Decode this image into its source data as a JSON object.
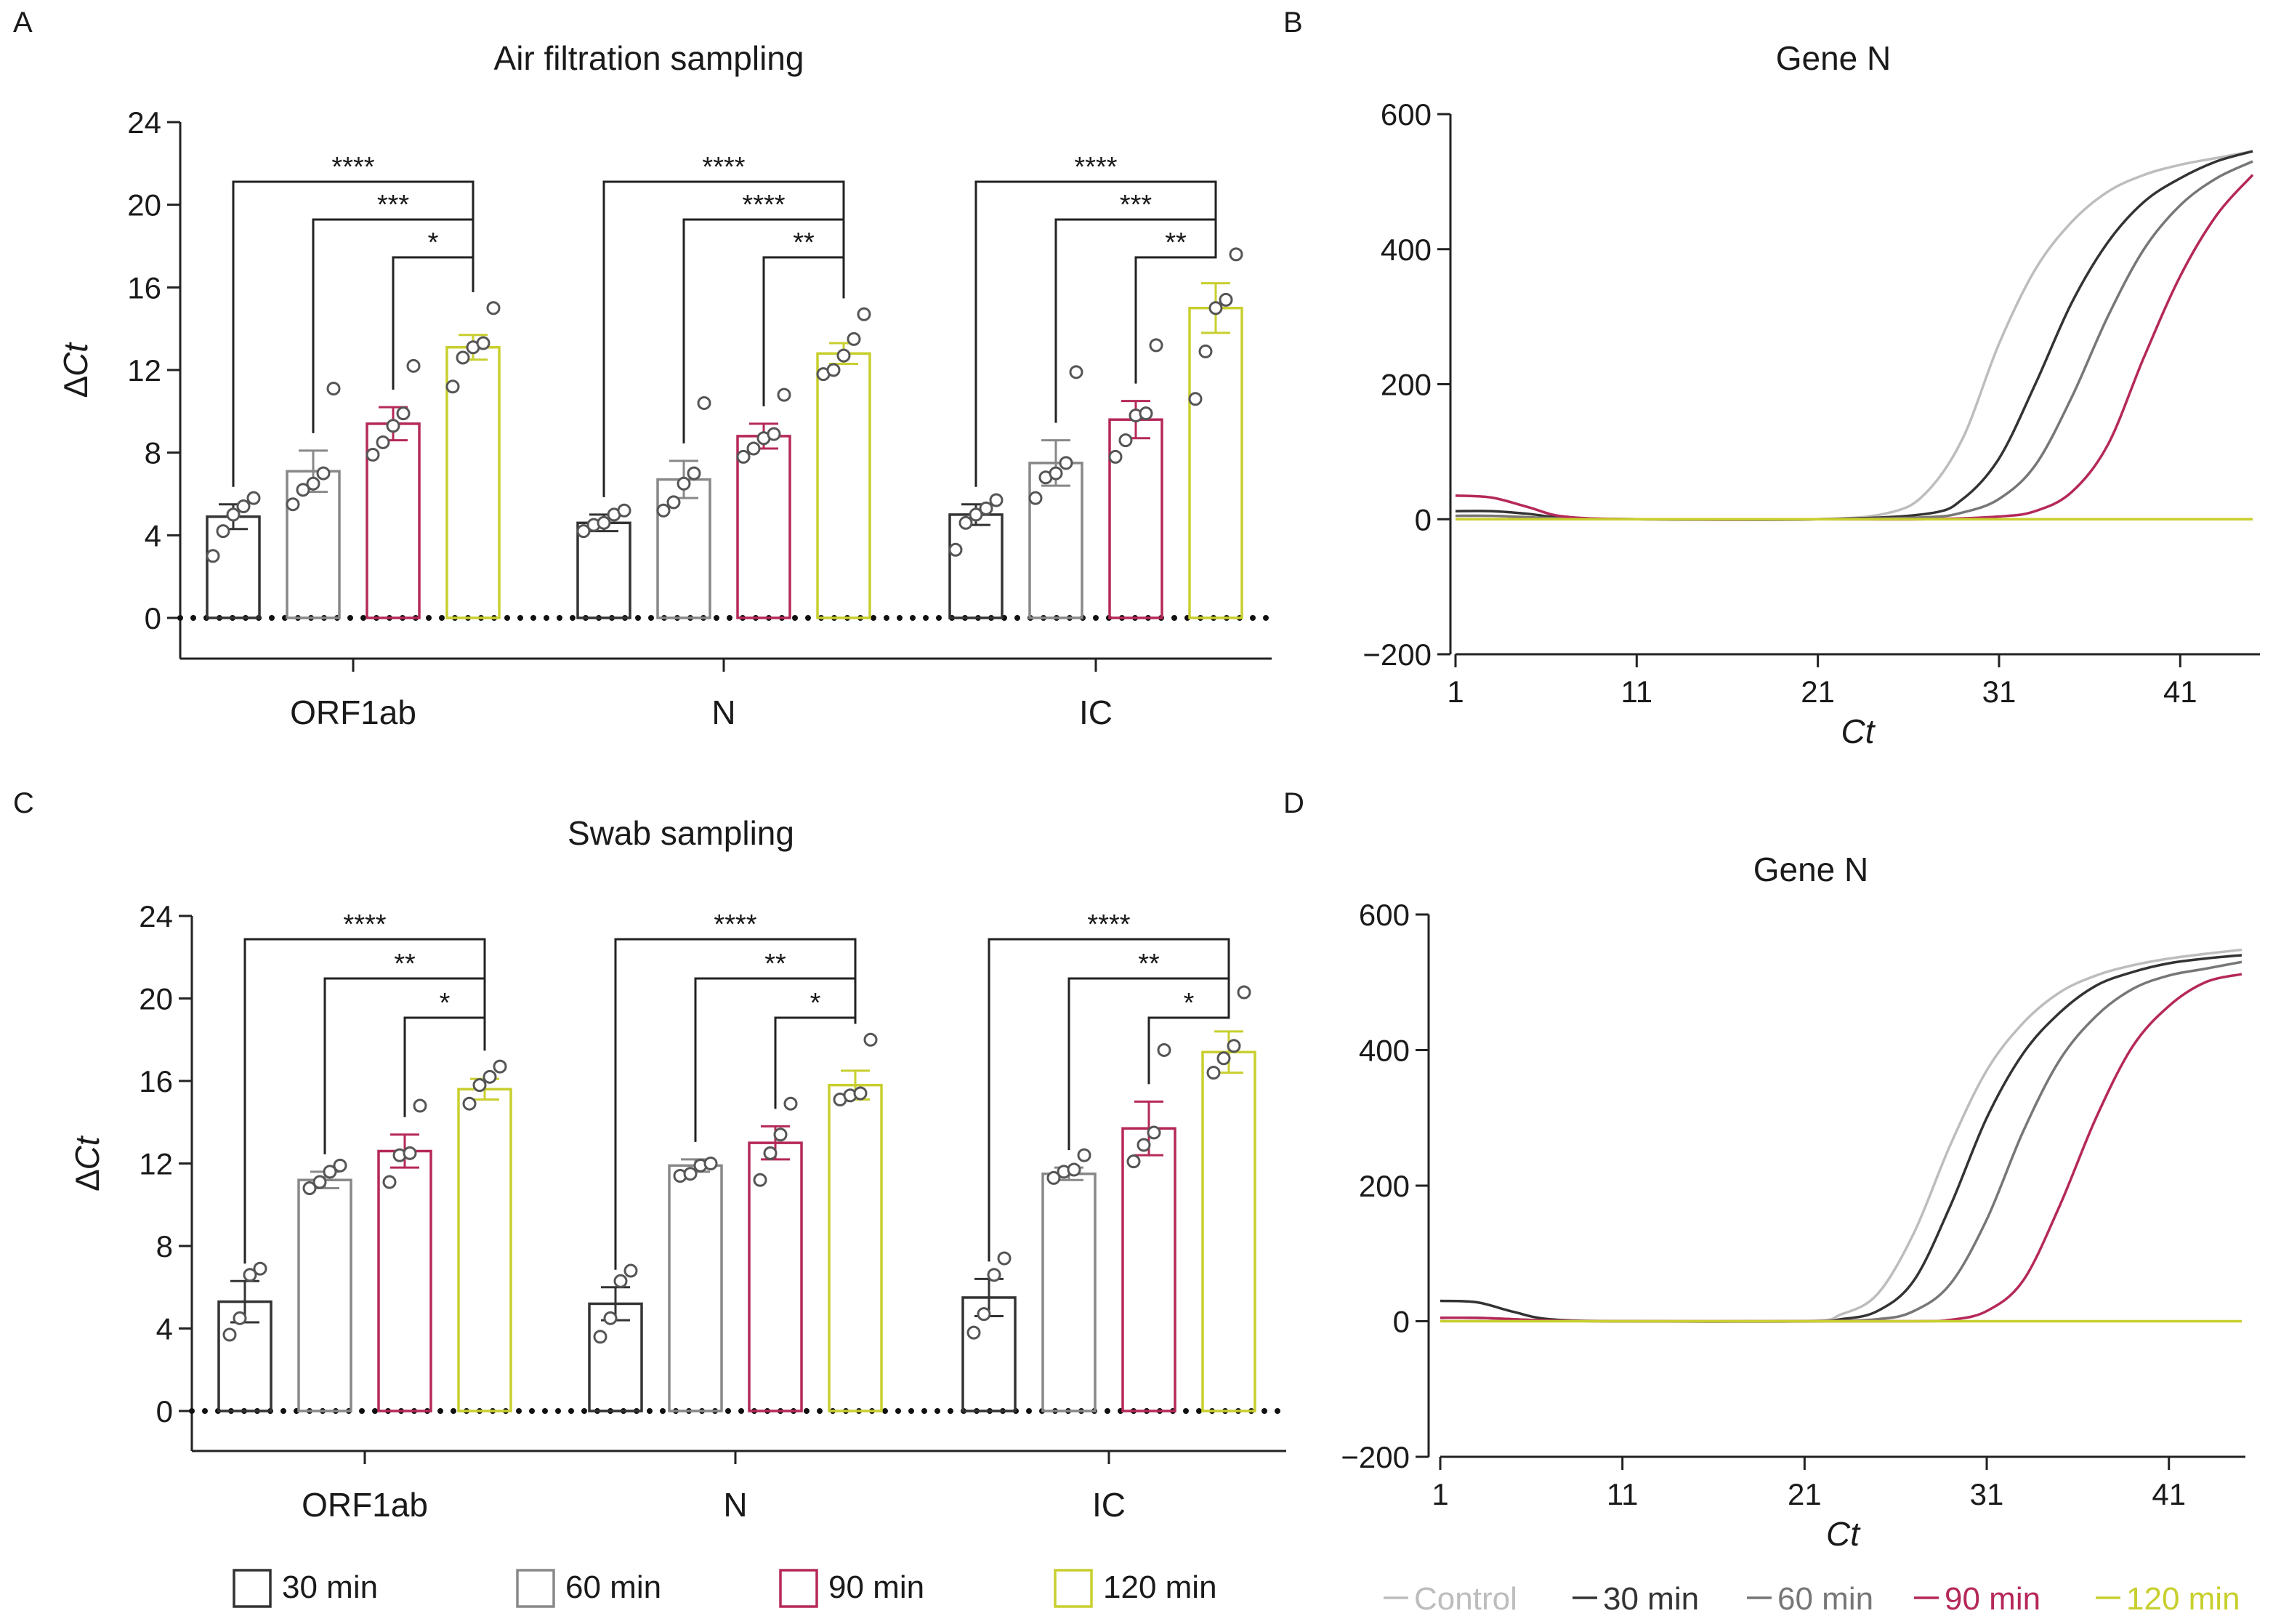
{
  "figure": {
    "panel_labels": {
      "a": "A",
      "b": "B",
      "c": "C",
      "d": "D"
    }
  },
  "legend_bars": [
    {
      "name": "30 min",
      "color": "#333333"
    },
    {
      "name": "60 min",
      "color": "#888888"
    },
    {
      "name": "90 min",
      "color": "#b5285a"
    },
    {
      "name": "120 min",
      "color": "#c8cf2e"
    }
  ],
  "legend_curves": [
    {
      "name": "Control",
      "color": "#bdbdbd"
    },
    {
      "name": "30 min",
      "color": "#333333"
    },
    {
      "name": "60 min",
      "color": "#777777"
    },
    {
      "name": "90 min",
      "color": "#b5285a"
    },
    {
      "name": "120 min",
      "color": "#c8cf2e"
    }
  ],
  "chart_data": [
    {
      "panel": "A",
      "type": "bar",
      "title": "Air filtration sampling",
      "ylabel": "∆Ct",
      "xlabel": "",
      "ylim": [
        0,
        24
      ],
      "yticks": [
        "0",
        "4",
        "8",
        "12",
        "16",
        "20",
        "24"
      ],
      "categories": [
        "ORF1ab",
        "N",
        "IC"
      ],
      "series": [
        {
          "name": "30 min",
          "values": [
            4.9,
            4.6,
            5.0
          ],
          "sem": [
            0.6,
            0.4,
            0.5
          ],
          "points": [
            [
              3,
              4.2,
              5.0,
              5.4,
              5.8
            ],
            [
              4.2,
              4.5,
              4.6,
              5.0,
              5.2
            ],
            [
              3.3,
              4.6,
              5.0,
              5.3,
              5.7
            ]
          ]
        },
        {
          "name": "60 min",
          "values": [
            7.1,
            6.7,
            7.5
          ],
          "sem": [
            1.0,
            0.9,
            1.1
          ],
          "points": [
            [
              5.5,
              6.2,
              6.5,
              7.0,
              11.1
            ],
            [
              5.2,
              5.6,
              6.5,
              7.0,
              10.4
            ],
            [
              5.8,
              6.8,
              7.0,
              7.5,
              11.9
            ]
          ]
        },
        {
          "name": "90 min",
          "values": [
            9.4,
            8.8,
            9.6
          ],
          "sem": [
            0.8,
            0.6,
            0.9
          ],
          "points": [
            [
              7.9,
              8.5,
              9.3,
              9.9,
              12.2
            ],
            [
              7.8,
              8.2,
              8.7,
              8.9,
              10.8
            ],
            [
              7.8,
              8.6,
              9.8,
              9.9,
              13.2
            ]
          ]
        },
        {
          "name": "120 min",
          "values": [
            13.1,
            12.8,
            15.0
          ],
          "sem": [
            0.6,
            0.5,
            1.2
          ],
          "points": [
            [
              11.2,
              12.6,
              13.1,
              13.3,
              15.0
            ],
            [
              11.8,
              12.0,
              12.7,
              13.5,
              14.7
            ],
            [
              10.6,
              12.9,
              15.0,
              15.4,
              17.6
            ]
          ]
        }
      ],
      "significance": [
        [
          {
            "from": 0,
            "to": 3,
            "label": "****"
          },
          {
            "from": 1,
            "to": 3,
            "label": "***"
          },
          {
            "from": 2,
            "to": 3,
            "label": "*"
          }
        ],
        [
          {
            "from": 0,
            "to": 3,
            "label": "****"
          },
          {
            "from": 1,
            "to": 3,
            "label": "****"
          },
          {
            "from": 2,
            "to": 3,
            "label": "**"
          }
        ],
        [
          {
            "from": 0,
            "to": 3,
            "label": "****"
          },
          {
            "from": 1,
            "to": 3,
            "label": "***"
          },
          {
            "from": 2,
            "to": 3,
            "label": "**"
          }
        ]
      ],
      "baseline_dotted": 0
    },
    {
      "panel": "B",
      "type": "line",
      "title": "Gene N",
      "xlabel": "Ct",
      "ylabel": "",
      "xlim": [
        0,
        45
      ],
      "ylim": [
        -200,
        600
      ],
      "xticks": [
        "1",
        "11",
        "21",
        "31",
        "41"
      ],
      "yticks": [
        "−200",
        "0",
        "200",
        "400",
        "600"
      ],
      "series": [
        {
          "name": "Control",
          "x": [
            1,
            3,
            5,
            7,
            11,
            21,
            25,
            27,
            29,
            31,
            33,
            35,
            37,
            39,
            41,
            43,
            45
          ],
          "y": [
            5,
            5,
            3,
            1,
            0,
            0,
            10,
            40,
            120,
            260,
            370,
            440,
            485,
            510,
            525,
            535,
            545
          ]
        },
        {
          "name": "30 min",
          "x": [
            1,
            3,
            5,
            7,
            11,
            21,
            27,
            29,
            31,
            33,
            35,
            37,
            39,
            41,
            43,
            45
          ],
          "y": [
            12,
            12,
            8,
            2,
            0,
            0,
            8,
            30,
            90,
            200,
            320,
            410,
            470,
            505,
            530,
            545
          ]
        },
        {
          "name": "60 min",
          "x": [
            1,
            3,
            5,
            7,
            11,
            21,
            27,
            29,
            31,
            33,
            35,
            37,
            39,
            41,
            43,
            45
          ],
          "y": [
            5,
            5,
            3,
            1,
            0,
            0,
            3,
            10,
            30,
            80,
            180,
            300,
            400,
            465,
            505,
            530
          ]
        },
        {
          "name": "90 min",
          "x": [
            1,
            3,
            5,
            7,
            11,
            21,
            27,
            31,
            33,
            35,
            37,
            39,
            41,
            43,
            45
          ],
          "y": [
            35,
            32,
            18,
            4,
            0,
            0,
            0,
            4,
            12,
            40,
            110,
            240,
            360,
            450,
            510
          ]
        },
        {
          "name": "120 min",
          "x": [
            1,
            45
          ],
          "y": [
            0,
            0
          ]
        }
      ]
    },
    {
      "panel": "C",
      "type": "bar",
      "title": "Swab sampling",
      "ylabel": "∆Ct",
      "xlabel": "",
      "ylim": [
        0,
        24
      ],
      "yticks": [
        "0",
        "4",
        "8",
        "12",
        "16",
        "20",
        "24"
      ],
      "categories": [
        "ORF1ab",
        "N",
        "IC"
      ],
      "series": [
        {
          "name": "30 min",
          "values": [
            5.3,
            5.2,
            5.5
          ],
          "sem": [
            1.0,
            0.8,
            0.9
          ],
          "points": [
            [
              3.7,
              4.5,
              6.6,
              6.9
            ],
            [
              3.6,
              4.5,
              6.3,
              6.8
            ],
            [
              3.8,
              4.7,
              6.6,
              7.4
            ]
          ]
        },
        {
          "name": "60 min",
          "values": [
            11.2,
            11.9,
            11.5
          ],
          "sem": [
            0.4,
            0.3,
            0.3
          ],
          "points": [
            [
              10.8,
              11.1,
              11.6,
              11.9
            ],
            [
              11.4,
              11.5,
              11.9,
              12.0
            ],
            [
              11.3,
              11.6,
              11.7,
              12.4
            ]
          ]
        },
        {
          "name": "90 min",
          "values": [
            12.6,
            13.0,
            13.7
          ],
          "sem": [
            0.8,
            0.8,
            1.3
          ],
          "points": [
            [
              11.1,
              12.4,
              12.5,
              14.8
            ],
            [
              11.2,
              12.5,
              13.4,
              14.9
            ],
            [
              12.1,
              12.9,
              13.5,
              17.5
            ]
          ]
        },
        {
          "name": "120 min",
          "values": [
            15.6,
            15.8,
            17.4
          ],
          "sem": [
            0.5,
            0.7,
            1.0
          ],
          "points": [
            [
              14.9,
              15.8,
              16.2,
              16.7
            ],
            [
              15.1,
              15.3,
              15.4,
              18.0
            ],
            [
              16.4,
              17.1,
              17.7,
              20.3
            ]
          ]
        }
      ],
      "significance": [
        [
          {
            "from": 0,
            "to": 3,
            "label": "****"
          },
          {
            "from": 1,
            "to": 3,
            "label": "**"
          },
          {
            "from": 2,
            "to": 3,
            "label": "*"
          }
        ],
        [
          {
            "from": 0,
            "to": 3,
            "label": "****"
          },
          {
            "from": 1,
            "to": 3,
            "label": "**"
          },
          {
            "from": 2,
            "to": 3,
            "label": "*"
          }
        ],
        [
          {
            "from": 0,
            "to": 3,
            "label": "****"
          },
          {
            "from": 1,
            "to": 3,
            "label": "**"
          },
          {
            "from": 2,
            "to": 3,
            "label": "*"
          }
        ]
      ],
      "baseline_dotted": 0
    },
    {
      "panel": "D",
      "type": "line",
      "title": "Gene N",
      "xlabel": "Ct",
      "ylabel": "",
      "xlim": [
        0,
        45
      ],
      "ylim": [
        -200,
        600
      ],
      "xticks": [
        "1",
        "11",
        "21",
        "31",
        "41"
      ],
      "yticks": [
        "−200",
        "0",
        "200",
        "400",
        "600"
      ],
      "series": [
        {
          "name": "Control",
          "x": [
            1,
            3,
            5,
            7,
            11,
            21,
            23,
            25,
            27,
            29,
            31,
            33,
            35,
            37,
            39,
            41,
            43,
            45
          ],
          "y": [
            5,
            5,
            3,
            1,
            0,
            0,
            10,
            40,
            130,
            260,
            370,
            440,
            485,
            510,
            525,
            535,
            542,
            548
          ]
        },
        {
          "name": "30 min",
          "x": [
            1,
            3,
            5,
            7,
            11,
            21,
            23,
            25,
            27,
            29,
            31,
            33,
            35,
            37,
            39,
            41,
            43,
            45
          ],
          "y": [
            30,
            28,
            14,
            3,
            0,
            0,
            3,
            15,
            60,
            170,
            300,
            395,
            455,
            495,
            515,
            528,
            535,
            540
          ]
        },
        {
          "name": "60 min",
          "x": [
            1,
            3,
            5,
            7,
            11,
            21,
            25,
            27,
            29,
            31,
            33,
            35,
            37,
            39,
            41,
            43,
            45
          ],
          "y": [
            5,
            5,
            3,
            1,
            0,
            0,
            3,
            15,
            55,
            150,
            280,
            385,
            450,
            490,
            510,
            520,
            530
          ]
        },
        {
          "name": "90 min",
          "x": [
            1,
            3,
            5,
            7,
            11,
            21,
            27,
            29,
            31,
            33,
            35,
            37,
            39,
            41,
            43,
            45
          ],
          "y": [
            5,
            5,
            3,
            1,
            0,
            0,
            0,
            2,
            15,
            60,
            170,
            300,
            405,
            465,
            500,
            512
          ]
        },
        {
          "name": "120 min",
          "x": [
            1,
            45
          ],
          "y": [
            0,
            0
          ]
        }
      ]
    }
  ]
}
